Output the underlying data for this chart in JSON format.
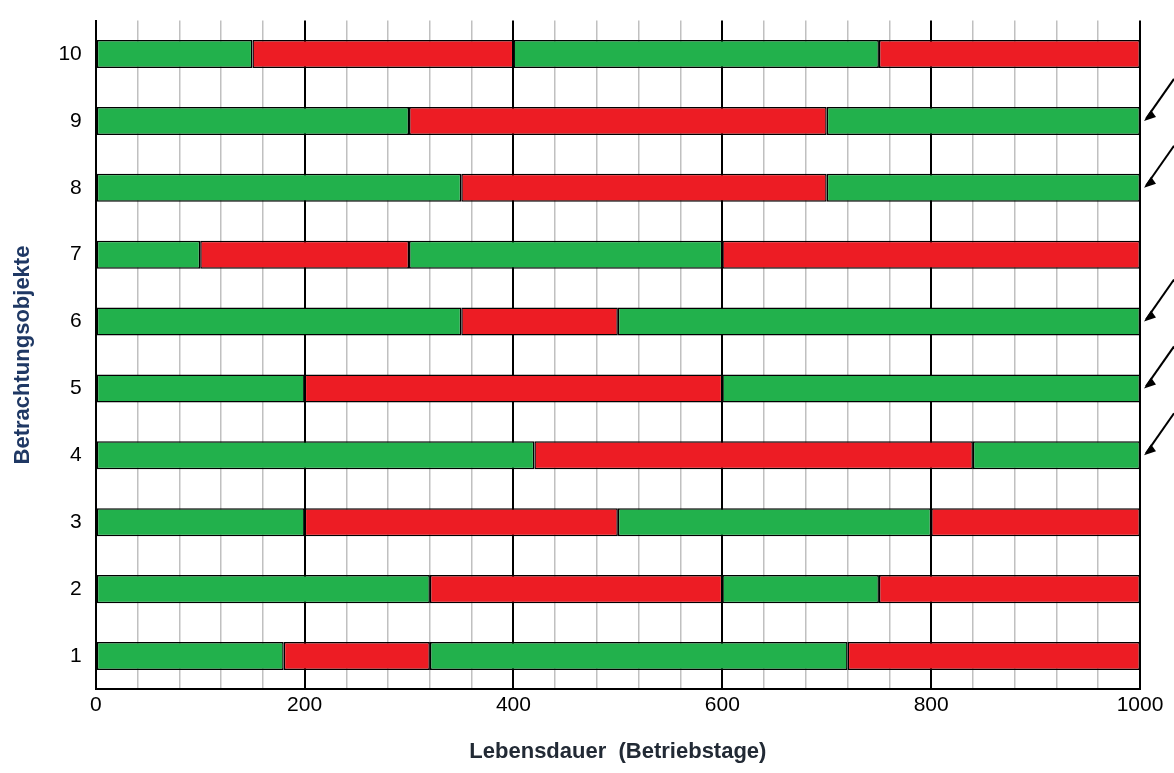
{
  "chart_data": {
    "type": "bar",
    "orientation": "horizontal",
    "stacked": true,
    "xlabel": "Lebensdauer  (Betriebstage)",
    "ylabel": "Betrachtungsobjekte",
    "categories": [
      "10",
      "9",
      "8",
      "7",
      "6",
      "5",
      "4",
      "3",
      "2",
      "1"
    ],
    "series": [
      {
        "color": "#22b14c",
        "values": [
          150,
          300,
          350,
          100,
          350,
          200,
          420,
          200,
          320,
          180
        ]
      },
      {
        "color": "#ed1c24",
        "values": [
          250,
          400,
          350,
          200,
          150,
          400,
          420,
          300,
          280,
          140
        ]
      },
      {
        "color": "#22b14c",
        "values": [
          350,
          300,
          300,
          300,
          500,
          400,
          160,
          300,
          150,
          400
        ]
      },
      {
        "color": "#ed1c24",
        "values": [
          250,
          null,
          null,
          400,
          null,
          null,
          null,
          200,
          250,
          280
        ]
      }
    ],
    "xlim": [
      0,
      1000
    ],
    "xticks": [
      0,
      {
        "value": 40,
        "label": null
      },
      {
        "value": 80,
        "label": null
      },
      {
        "value": 120,
        "label": null
      },
      {
        "value": 160,
        "label": null
      },
      200,
      {
        "value": 240,
        "label": null
      },
      {
        "value": 280,
        "label": null
      },
      {
        "value": 320,
        "label": null
      },
      {
        "value": 360,
        "label": null
      },
      400,
      {
        "value": 440,
        "label": null
      },
      {
        "value": 480,
        "label": null
      },
      {
        "value": 520,
        "label": null
      },
      {
        "value": 560,
        "label": null
      },
      600,
      {
        "value": 640,
        "label": null
      },
      {
        "value": 680,
        "label": null
      },
      {
        "value": 720,
        "label": null
      },
      {
        "value": 760,
        "label": null
      },
      800,
      {
        "value": 840,
        "label": null
      },
      {
        "value": 880,
        "label": null
      },
      {
        "value": 920,
        "label": null
      },
      {
        "value": 960,
        "label": null
      },
      1000
    ],
    "grid": "x",
    "legend": false
  }
}
